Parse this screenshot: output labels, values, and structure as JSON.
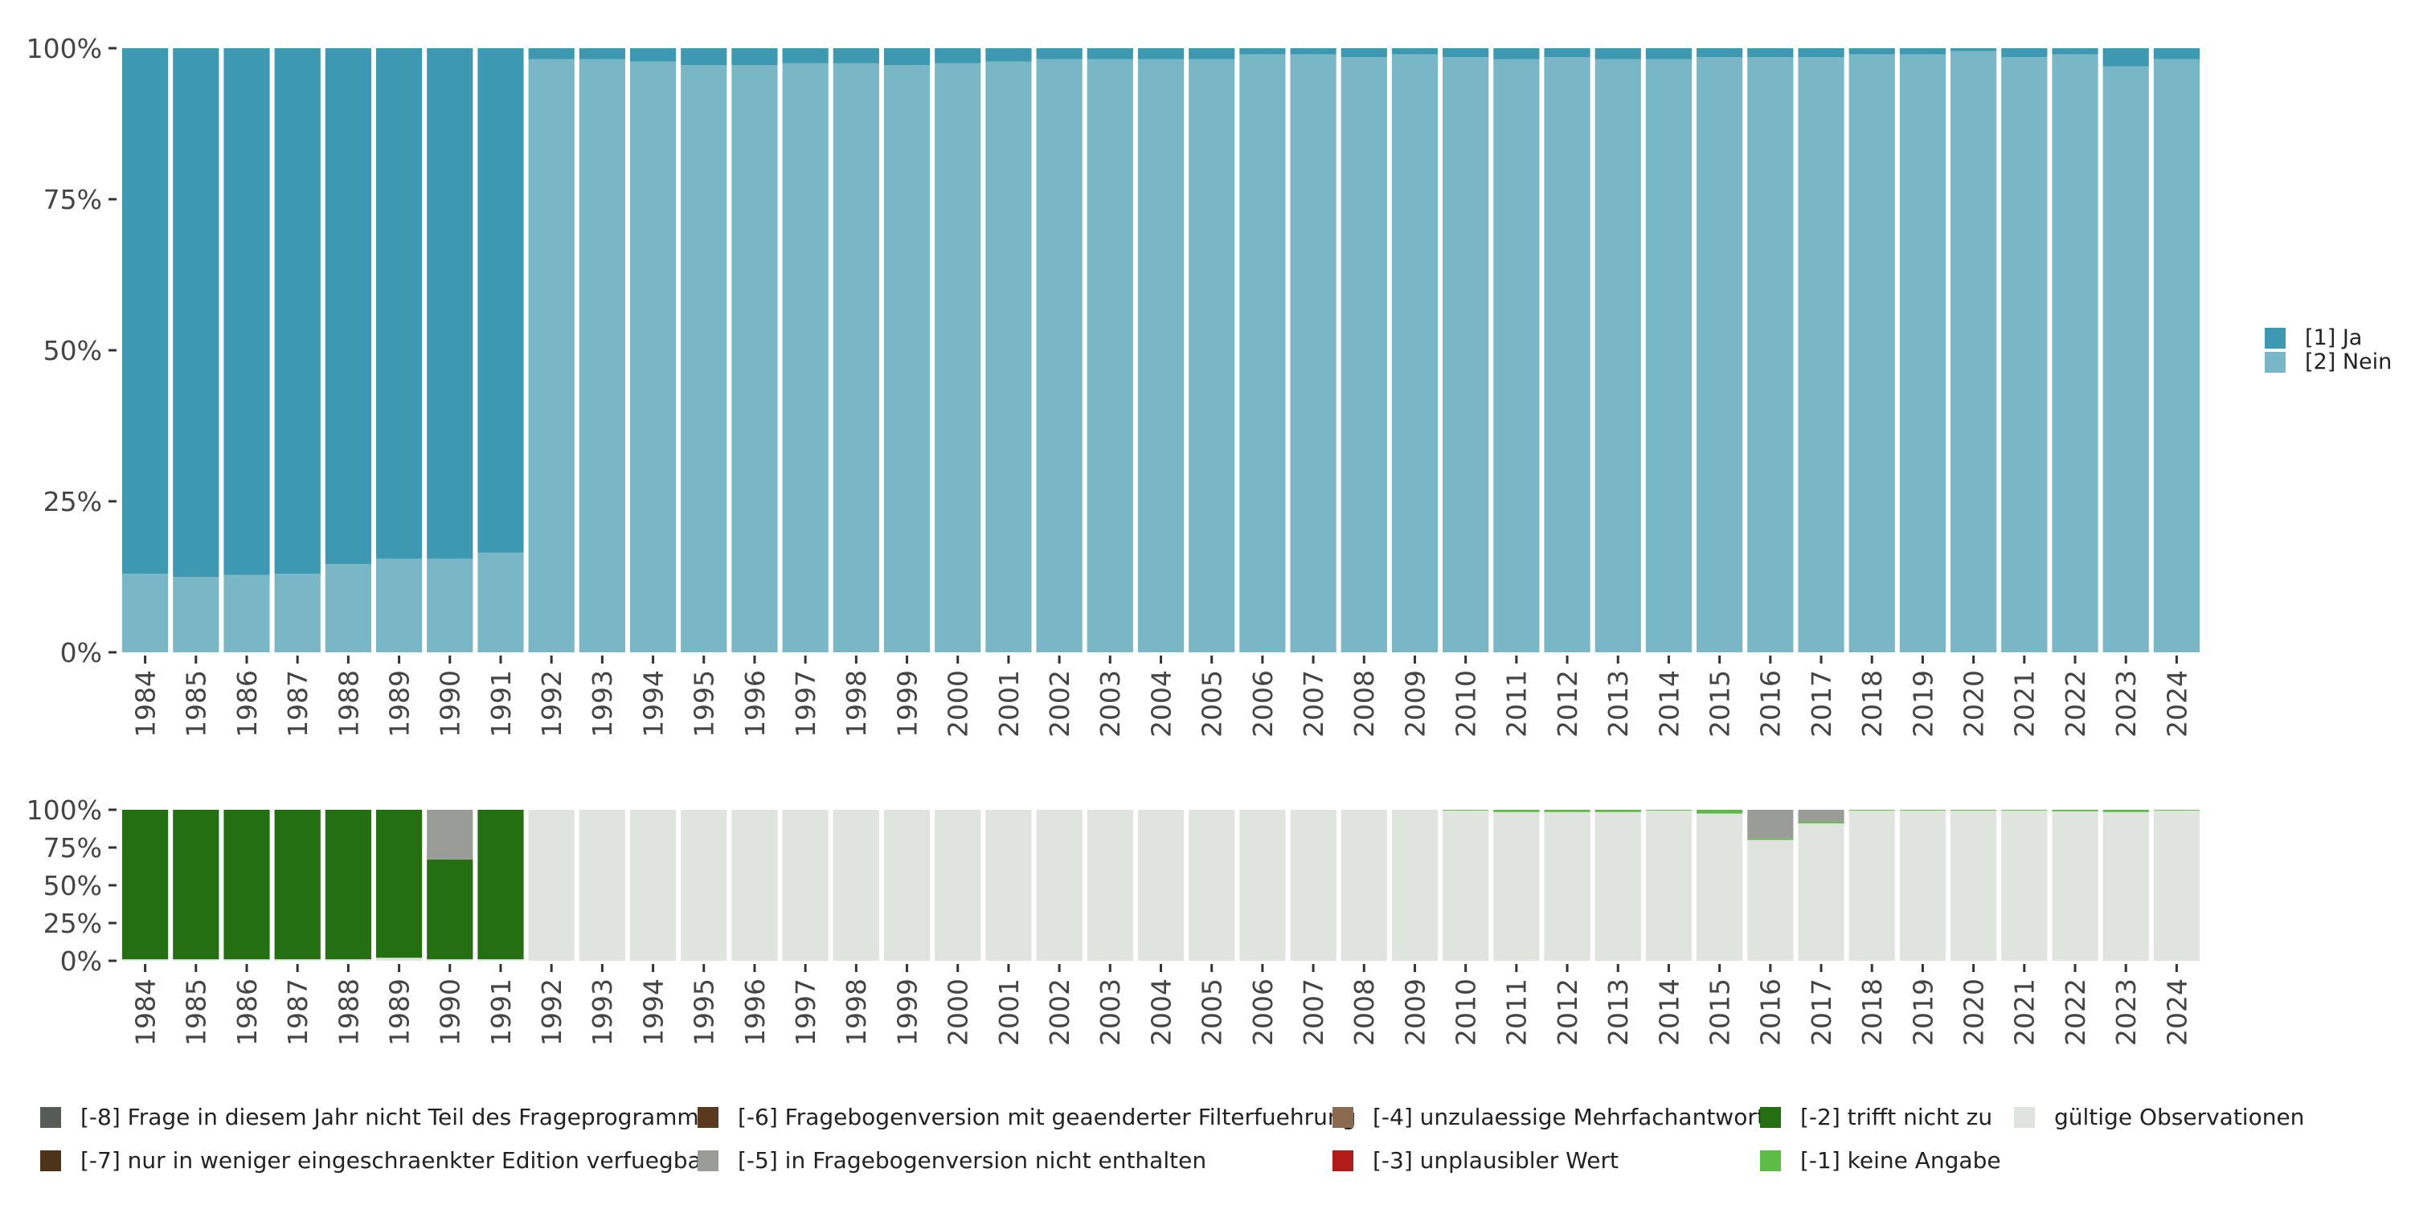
{
  "chart_data": [
    {
      "type": "bar",
      "stacked": true,
      "title": "",
      "xlabel": "",
      "ylabel": "",
      "ylim": [
        0,
        1
      ],
      "y_ticks": [
        "0%",
        "25%",
        "50%",
        "75%",
        "100%"
      ],
      "y_tick_values": [
        0,
        0.25,
        0.5,
        0.75,
        1
      ],
      "categories": [
        "1984",
        "1985",
        "1986",
        "1987",
        "1988",
        "1989",
        "1990",
        "1991",
        "1992",
        "1993",
        "1994",
        "1995",
        "1996",
        "1997",
        "1998",
        "1999",
        "2000",
        "2001",
        "2002",
        "2003",
        "2004",
        "2005",
        "2006",
        "2007",
        "2008",
        "2009",
        "2010",
        "2011",
        "2012",
        "2013",
        "2014",
        "2015",
        "2016",
        "2017",
        "2018",
        "2019",
        "2020",
        "2021",
        "2022",
        "2023",
        "2024"
      ],
      "series": [
        {
          "name": "[2] Nein",
          "color": "#79b7c6",
          "values": [
            0.13,
            0.125,
            0.128,
            0.13,
            0.146,
            0.155,
            0.155,
            0.165,
            0.982,
            0.982,
            0.978,
            0.972,
            0.972,
            0.975,
            0.975,
            0.972,
            0.975,
            0.978,
            0.982,
            0.982,
            0.982,
            0.982,
            0.99,
            0.99,
            0.985,
            0.99,
            0.985,
            0.982,
            0.985,
            0.982,
            0.982,
            0.985,
            0.985,
            0.985,
            0.99,
            0.99,
            0.995,
            0.985,
            0.99,
            0.97,
            0.982
          ]
        },
        {
          "name": "[1] Ja",
          "color": "#3c99b1",
          "values": [
            0.87,
            0.875,
            0.872,
            0.87,
            0.854,
            0.845,
            0.845,
            0.835,
            0.018,
            0.018,
            0.022,
            0.028,
            0.028,
            0.025,
            0.025,
            0.028,
            0.025,
            0.022,
            0.018,
            0.018,
            0.018,
            0.018,
            0.01,
            0.01,
            0.015,
            0.01,
            0.015,
            0.018,
            0.015,
            0.018,
            0.018,
            0.015,
            0.015,
            0.015,
            0.01,
            0.01,
            0.005,
            0.015,
            0.01,
            0.03,
            0.018
          ]
        }
      ],
      "legend": {
        "position": "right",
        "entries": [
          "[1] Ja",
          "[2] Nein"
        ]
      }
    },
    {
      "type": "bar",
      "stacked": true,
      "title": "",
      "xlabel": "",
      "ylabel": "",
      "ylim": [
        0,
        1
      ],
      "y_ticks": [
        "0%",
        "25%",
        "50%",
        "75%",
        "100%"
      ],
      "y_tick_values": [
        0,
        0.25,
        0.5,
        0.75,
        1
      ],
      "categories": [
        "1984",
        "1985",
        "1986",
        "1987",
        "1988",
        "1989",
        "1990",
        "1991",
        "1992",
        "1993",
        "1994",
        "1995",
        "1996",
        "1997",
        "1998",
        "1999",
        "2000",
        "2001",
        "2002",
        "2003",
        "2004",
        "2005",
        "2006",
        "2007",
        "2008",
        "2009",
        "2010",
        "2011",
        "2012",
        "2013",
        "2014",
        "2015",
        "2016",
        "2017",
        "2018",
        "2019",
        "2020",
        "2021",
        "2022",
        "2023",
        "2024"
      ],
      "series": [
        {
          "name": "gültige Observationen",
          "color": "#e0e4de",
          "values": [
            0.01,
            0.01,
            0.01,
            0.01,
            0.01,
            0.02,
            0.01,
            0.01,
            1,
            1,
            1,
            1,
            1,
            1,
            1,
            1,
            1,
            1,
            1,
            1,
            1,
            1,
            1,
            1,
            1,
            1,
            0.995,
            0.985,
            0.985,
            0.985,
            0.995,
            0.975,
            0.8,
            0.91,
            0.995,
            0.995,
            0.995,
            0.995,
            0.99,
            0.985,
            0.995
          ]
        },
        {
          "name": "[-1] keine Angabe",
          "color": "#5dbb46",
          "values": [
            0,
            0,
            0,
            0,
            0,
            0,
            0,
            0,
            0,
            0,
            0,
            0,
            0,
            0,
            0,
            0,
            0,
            0,
            0,
            0,
            0,
            0,
            0,
            0,
            0,
            0,
            0.005,
            0.015,
            0.015,
            0.015,
            0.005,
            0.025,
            0.01,
            0.01,
            0.005,
            0.005,
            0.005,
            0.005,
            0.01,
            0.015,
            0.005
          ]
        },
        {
          "name": "[-2] trifft nicht zu",
          "color": "#236f12",
          "values": [
            0.99,
            0.99,
            0.99,
            0.99,
            0.99,
            0.98,
            0.66,
            0.99,
            0,
            0,
            0,
            0,
            0,
            0,
            0,
            0,
            0,
            0,
            0,
            0,
            0,
            0,
            0,
            0,
            0,
            0,
            0,
            0,
            0,
            0,
            0,
            0,
            0,
            0,
            0,
            0,
            0,
            0,
            0,
            0,
            0
          ]
        },
        {
          "name": "[-5] in Fragebogenversion nicht enthalten",
          "color": "#9a9d97",
          "values": [
            0,
            0,
            0,
            0,
            0,
            0,
            0.33,
            0,
            0,
            0,
            0,
            0,
            0,
            0,
            0,
            0,
            0,
            0,
            0,
            0,
            0,
            0,
            0,
            0,
            0,
            0,
            0,
            0,
            0,
            0,
            0,
            0,
            0.19,
            0.08,
            0,
            0,
            0,
            0,
            0,
            0,
            0
          ]
        }
      ],
      "legend": {
        "position": "bottom",
        "entries": [
          {
            "label": "[-8] Frage in diesem Jahr nicht Teil des Frageprogramms",
            "color": "#555b55"
          },
          {
            "label": "[-7] nur in weniger eingeschraenkter Edition verfuegbar",
            "color": "#4d3319"
          },
          {
            "label": "[-6] Fragebogenversion mit geaenderter Filterfuehrung",
            "color": "#5a3a1c"
          },
          {
            "label": "[-5] in Fragebogenversion nicht enthalten",
            "color": "#9a9d97"
          },
          {
            "label": "[-4] unzulaessige Mehrfachantwort",
            "color": "#8c6a50"
          },
          {
            "label": "[-3] unplausibler Wert",
            "color": "#b31b1b"
          },
          {
            "label": "[-2] trifft nicht zu",
            "color": "#236f12"
          },
          {
            "label": "[-1] keine Angabe",
            "color": "#5dbb46"
          },
          {
            "label": "gültige Observationen",
            "color": "#e0e4de"
          }
        ]
      }
    }
  ]
}
